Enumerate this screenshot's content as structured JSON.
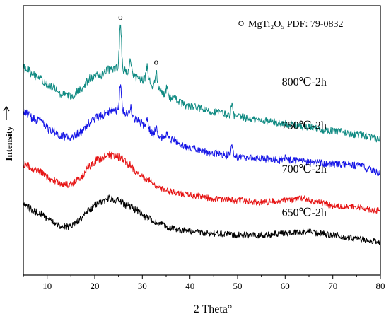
{
  "chart_data": {
    "type": "line",
    "xlabel": "2 Theta°",
    "ylabel": "Intensity",
    "xlim": [
      5,
      80
    ],
    "x_ticks": [
      "10",
      "20",
      "30",
      "40",
      "50",
      "60",
      "70",
      "80"
    ],
    "legend": {
      "marker": "o",
      "text": "MgTi₂O₅   PDF:  79-0832",
      "placement": "top-right"
    },
    "grid": false,
    "series": [
      {
        "name": "800℃-2h",
        "color": "#0f8a82",
        "baseline": 0.75,
        "noise": 0.035,
        "points": [
          [
            5,
            0.97
          ],
          [
            8,
            0.92
          ],
          [
            11,
            0.86
          ],
          [
            13,
            0.82
          ],
          [
            15,
            0.81
          ],
          [
            17,
            0.85
          ],
          [
            19,
            0.91
          ],
          [
            21,
            0.93
          ],
          [
            23,
            0.96
          ],
          [
            25,
            0.97
          ],
          [
            27,
            0.95
          ],
          [
            29,
            0.91
          ],
          [
            31,
            0.9
          ],
          [
            33,
            0.85
          ],
          [
            36,
            0.8
          ],
          [
            40,
            0.75
          ],
          [
            45,
            0.72
          ],
          [
            50,
            0.69
          ],
          [
            55,
            0.67
          ],
          [
            60,
            0.65
          ],
          [
            65,
            0.63
          ],
          [
            70,
            0.61
          ],
          [
            75,
            0.59
          ],
          [
            80,
            0.56
          ]
        ],
        "peaks": [
          [
            25.4,
            0.24
          ],
          [
            27.5,
            0.06
          ],
          [
            31.0,
            0.08
          ],
          [
            32.9,
            0.1
          ],
          [
            35.2,
            0.05
          ],
          [
            48.8,
            0.06
          ]
        ],
        "markers": [
          [
            25.4,
            "o"
          ],
          [
            32.9,
            "o"
          ]
        ]
      },
      {
        "name": "750℃-2h",
        "color": "#1515e6",
        "baseline": 0.5,
        "noise": 0.035,
        "points": [
          [
            5,
            0.72
          ],
          [
            8,
            0.67
          ],
          [
            11,
            0.61
          ],
          [
            13,
            0.58
          ],
          [
            15,
            0.57
          ],
          [
            17,
            0.6
          ],
          [
            19,
            0.66
          ],
          [
            21,
            0.69
          ],
          [
            23,
            0.72
          ],
          [
            25,
            0.73
          ],
          [
            27,
            0.71
          ],
          [
            29,
            0.67
          ],
          [
            31,
            0.62
          ],
          [
            33,
            0.58
          ],
          [
            36,
            0.56
          ],
          [
            40,
            0.51
          ],
          [
            45,
            0.48
          ],
          [
            50,
            0.46
          ],
          [
            55,
            0.45
          ],
          [
            60,
            0.44
          ],
          [
            65,
            0.43
          ],
          [
            70,
            0.42
          ],
          [
            75,
            0.41
          ],
          [
            80,
            0.37
          ]
        ],
        "peaks": [
          [
            25.4,
            0.15
          ],
          [
            27.5,
            0.04
          ],
          [
            31.0,
            0.06
          ],
          [
            32.9,
            0.06
          ],
          [
            35.2,
            0.04
          ],
          [
            48.8,
            0.05
          ],
          [
            60.0,
            0.02
          ]
        ]
      },
      {
        "name": "700℃-2h",
        "color": "#e61515",
        "baseline": 0.25,
        "noise": 0.03,
        "points": [
          [
            5,
            0.42
          ],
          [
            8,
            0.38
          ],
          [
            11,
            0.33
          ],
          [
            13,
            0.3
          ],
          [
            15,
            0.3
          ],
          [
            17,
            0.34
          ],
          [
            19,
            0.41
          ],
          [
            21,
            0.45
          ],
          [
            23,
            0.47
          ],
          [
            25,
            0.46
          ],
          [
            27,
            0.42
          ],
          [
            29,
            0.37
          ],
          [
            31,
            0.33
          ],
          [
            33,
            0.29
          ],
          [
            36,
            0.26
          ],
          [
            40,
            0.24
          ],
          [
            45,
            0.22
          ],
          [
            50,
            0.21
          ],
          [
            55,
            0.2
          ],
          [
            60,
            0.21
          ],
          [
            64,
            0.22
          ],
          [
            67,
            0.2
          ],
          [
            70,
            0.18
          ],
          [
            75,
            0.17
          ],
          [
            80,
            0.15
          ]
        ],
        "peaks": []
      },
      {
        "name": "650℃-2h",
        "color": "#000000",
        "baseline": 0.0,
        "noise": 0.03,
        "points": [
          [
            5,
            0.18
          ],
          [
            8,
            0.14
          ],
          [
            11,
            0.09
          ],
          [
            13,
            0.06
          ],
          [
            15,
            0.06
          ],
          [
            17,
            0.1
          ],
          [
            19,
            0.16
          ],
          [
            21,
            0.2
          ],
          [
            23,
            0.22
          ],
          [
            25,
            0.21
          ],
          [
            27,
            0.18
          ],
          [
            29,
            0.15
          ],
          [
            31,
            0.11
          ],
          [
            33,
            0.08
          ],
          [
            36,
            0.05
          ],
          [
            40,
            0.03
          ],
          [
            45,
            0.02
          ],
          [
            50,
            0.01
          ],
          [
            55,
            0.01
          ],
          [
            60,
            0.02
          ],
          [
            64,
            0.03
          ],
          [
            67,
            0.02
          ],
          [
            70,
            0.01
          ],
          [
            75,
            -0.01
          ],
          [
            80,
            -0.03
          ]
        ],
        "peaks": []
      }
    ]
  }
}
